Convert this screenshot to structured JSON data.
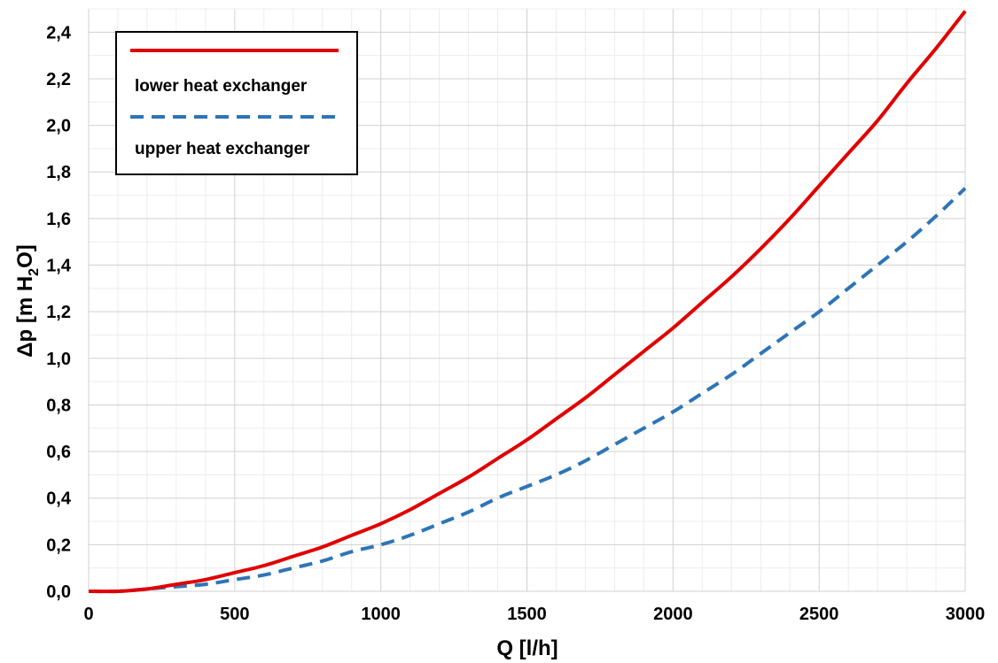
{
  "chart_data": {
    "type": "line",
    "title": "",
    "xlabel": "Q [l/h]",
    "ylabel_parts": {
      "main": "Δp [m H",
      "sub": "2",
      "tail": "O]"
    },
    "xlim": [
      0,
      3000
    ],
    "ylim": [
      0,
      2.5
    ],
    "x_ticks": [
      0,
      500,
      1000,
      1500,
      2000,
      2500,
      3000
    ],
    "x_tick_labels": [
      "0",
      "500",
      "1000",
      "1500",
      "2000",
      "2500",
      "3000"
    ],
    "y_ticks": [
      0,
      0.2,
      0.4,
      0.6,
      0.8,
      1.0,
      1.2,
      1.4,
      1.6,
      1.8,
      2.0,
      2.2,
      2.4
    ],
    "y_tick_labels": [
      "0,0",
      "0,2",
      "0,4",
      "0,6",
      "0,8",
      "1,0",
      "1,2",
      "1,4",
      "1,6",
      "1,8",
      "2,0",
      "2,2",
      "2,4"
    ],
    "grid": true,
    "legend_position": "top-left",
    "series": [
      {
        "name": "lower heat exchanger",
        "color": "#e00000",
        "style": "solid",
        "x": [
          0,
          100,
          200,
          300,
          400,
          500,
          600,
          700,
          800,
          900,
          1000,
          1100,
          1200,
          1300,
          1400,
          1500,
          1600,
          1700,
          1800,
          1900,
          2000,
          2100,
          2200,
          2300,
          2400,
          2500,
          2600,
          2700,
          2800,
          2900,
          3000
        ],
        "values": [
          0,
          0.0,
          0.01,
          0.03,
          0.05,
          0.08,
          0.11,
          0.15,
          0.19,
          0.24,
          0.29,
          0.35,
          0.42,
          0.49,
          0.57,
          0.65,
          0.74,
          0.83,
          0.93,
          1.03,
          1.13,
          1.24,
          1.35,
          1.47,
          1.6,
          1.74,
          1.88,
          2.02,
          2.18,
          2.33,
          2.49
        ]
      },
      {
        "name": "upper heat exchanger",
        "color": "#2e75b6",
        "style": "dashed",
        "x": [
          0,
          100,
          200,
          300,
          400,
          500,
          600,
          700,
          800,
          900,
          1000,
          1100,
          1200,
          1300,
          1400,
          1500,
          1600,
          1700,
          1800,
          1900,
          2000,
          2100,
          2200,
          2300,
          2400,
          2500,
          2600,
          2700,
          2800,
          2900,
          3000
        ],
        "values": [
          0,
          0.0,
          0.01,
          0.02,
          0.03,
          0.05,
          0.07,
          0.1,
          0.13,
          0.17,
          0.2,
          0.24,
          0.29,
          0.34,
          0.4,
          0.45,
          0.5,
          0.56,
          0.63,
          0.7,
          0.77,
          0.85,
          0.93,
          1.02,
          1.11,
          1.2,
          1.3,
          1.4,
          1.5,
          1.61,
          1.73
        ]
      }
    ]
  }
}
